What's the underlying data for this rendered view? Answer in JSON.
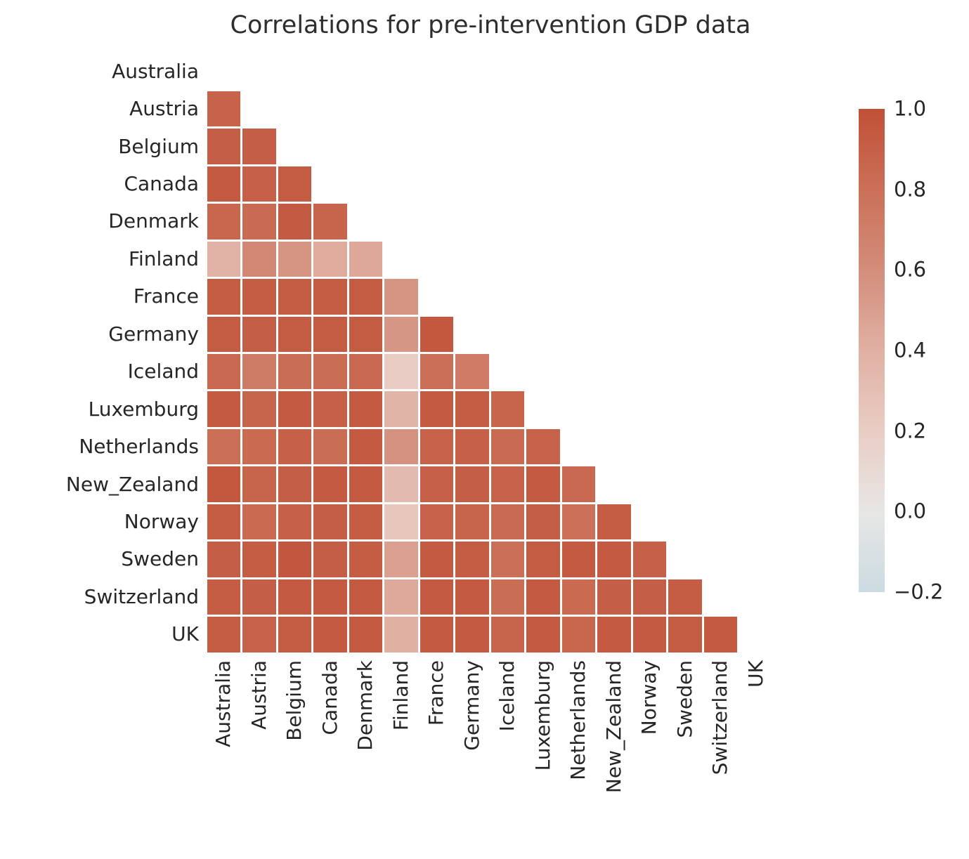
{
  "title": "Correlations for pre-intervention GDP data",
  "colorbar": {
    "tick_labels": [
      "1.0",
      "0.8",
      "0.6",
      "0.4",
      "0.2",
      "0.0",
      "−0.2"
    ],
    "vmin": -0.2,
    "vmax": 1.0,
    "position": "right"
  },
  "colormap": {
    "name": "diverging-blue-to-red",
    "stops": [
      {
        "value": -0.2,
        "color": "#ccdbe1"
      },
      {
        "value": 0.0,
        "color": "#e7e6e5"
      },
      {
        "value": 0.2,
        "color": "#e9cdc4"
      },
      {
        "value": 0.4,
        "color": "#e0b0a3"
      },
      {
        "value": 0.6,
        "color": "#d38d7b"
      },
      {
        "value": 0.8,
        "color": "#cb7058"
      },
      {
        "value": 1.0,
        "color": "#c05037"
      }
    ]
  },
  "chart_data": {
    "type": "heatmap",
    "title": "Correlations for pre-intervention GDP data",
    "mask": "upper triangle including diagonal is hidden (white)",
    "grid": false,
    "legend_position": "right colorbar",
    "value_range": [
      -0.2,
      1.0
    ],
    "categories": [
      "Australia",
      "Austria",
      "Belgium",
      "Canada",
      "Denmark",
      "Finland",
      "France",
      "Germany",
      "Iceland",
      "Luxemburg",
      "Netherlands",
      "New_Zealand",
      "Norway",
      "Sweden",
      "Switzerland",
      "UK"
    ],
    "matrix": [
      [
        null,
        null,
        null,
        null,
        null,
        null,
        null,
        null,
        null,
        null,
        null,
        null,
        null,
        null,
        null,
        null
      ],
      [
        0.88,
        null,
        null,
        null,
        null,
        null,
        null,
        null,
        null,
        null,
        null,
        null,
        null,
        null,
        null,
        null
      ],
      [
        0.91,
        0.91,
        null,
        null,
        null,
        null,
        null,
        null,
        null,
        null,
        null,
        null,
        null,
        null,
        null,
        null
      ],
      [
        0.94,
        0.9,
        0.93,
        null,
        null,
        null,
        null,
        null,
        null,
        null,
        null,
        null,
        null,
        null,
        null,
        null
      ],
      [
        0.86,
        0.83,
        0.94,
        0.87,
        null,
        null,
        null,
        null,
        null,
        null,
        null,
        null,
        null,
        null,
        null,
        null
      ],
      [
        0.38,
        0.64,
        0.56,
        0.43,
        0.45,
        null,
        null,
        null,
        null,
        null,
        null,
        null,
        null,
        null,
        null,
        null
      ],
      [
        0.93,
        0.92,
        0.93,
        0.93,
        0.93,
        0.56,
        null,
        null,
        null,
        null,
        null,
        null,
        null,
        null,
        null,
        null
      ],
      [
        0.93,
        0.91,
        0.93,
        0.93,
        0.93,
        0.55,
        0.95,
        null,
        null,
        null,
        null,
        null,
        null,
        null,
        null,
        null
      ],
      [
        0.85,
        0.72,
        0.82,
        0.82,
        0.85,
        0.2,
        0.8,
        0.73,
        null,
        null,
        null,
        null,
        null,
        null,
        null,
        null
      ],
      [
        0.94,
        0.87,
        0.94,
        0.9,
        0.94,
        0.37,
        0.94,
        0.93,
        0.87,
        null,
        null,
        null,
        null,
        null,
        null,
        null
      ],
      [
        0.81,
        0.84,
        0.9,
        0.82,
        0.94,
        0.57,
        0.89,
        0.9,
        0.83,
        0.89,
        null,
        null,
        null,
        null,
        null,
        null
      ],
      [
        0.95,
        0.87,
        0.91,
        0.94,
        0.94,
        0.33,
        0.9,
        0.91,
        0.89,
        0.94,
        0.85,
        null,
        null,
        null,
        null,
        null
      ],
      [
        0.93,
        0.84,
        0.9,
        0.91,
        0.92,
        0.25,
        0.89,
        0.87,
        0.83,
        0.91,
        0.79,
        0.93,
        null,
        null,
        null,
        null
      ],
      [
        0.91,
        0.92,
        0.96,
        0.91,
        0.92,
        0.5,
        0.94,
        0.93,
        0.8,
        0.93,
        0.94,
        0.94,
        0.9,
        null,
        null,
        null
      ],
      [
        0.92,
        0.91,
        0.94,
        0.94,
        0.94,
        0.44,
        0.94,
        0.94,
        0.82,
        0.94,
        0.84,
        0.91,
        0.91,
        0.92,
        null,
        null
      ],
      [
        0.92,
        0.88,
        0.93,
        0.94,
        0.94,
        0.4,
        0.94,
        0.94,
        0.87,
        0.94,
        0.86,
        0.94,
        0.94,
        0.93,
        0.94,
        null
      ]
    ]
  },
  "layout_text": {
    "x_axis_labels": [
      "Australia",
      "Austria",
      "Belgium",
      "Canada",
      "Denmark",
      "Finland",
      "France",
      "Germany",
      "Iceland",
      "Luxemburg",
      "Netherlands",
      "New_Zealand",
      "Norway",
      "Sweden",
      "Switzerland",
      "UK"
    ],
    "y_axis_labels": [
      "Australia",
      "Austria",
      "Belgium",
      "Canada",
      "Denmark",
      "Finland",
      "France",
      "Germany",
      "Iceland",
      "Luxemburg",
      "Netherlands",
      "New_Zealand",
      "Norway",
      "Sweden",
      "Switzerland",
      "UK"
    ]
  }
}
